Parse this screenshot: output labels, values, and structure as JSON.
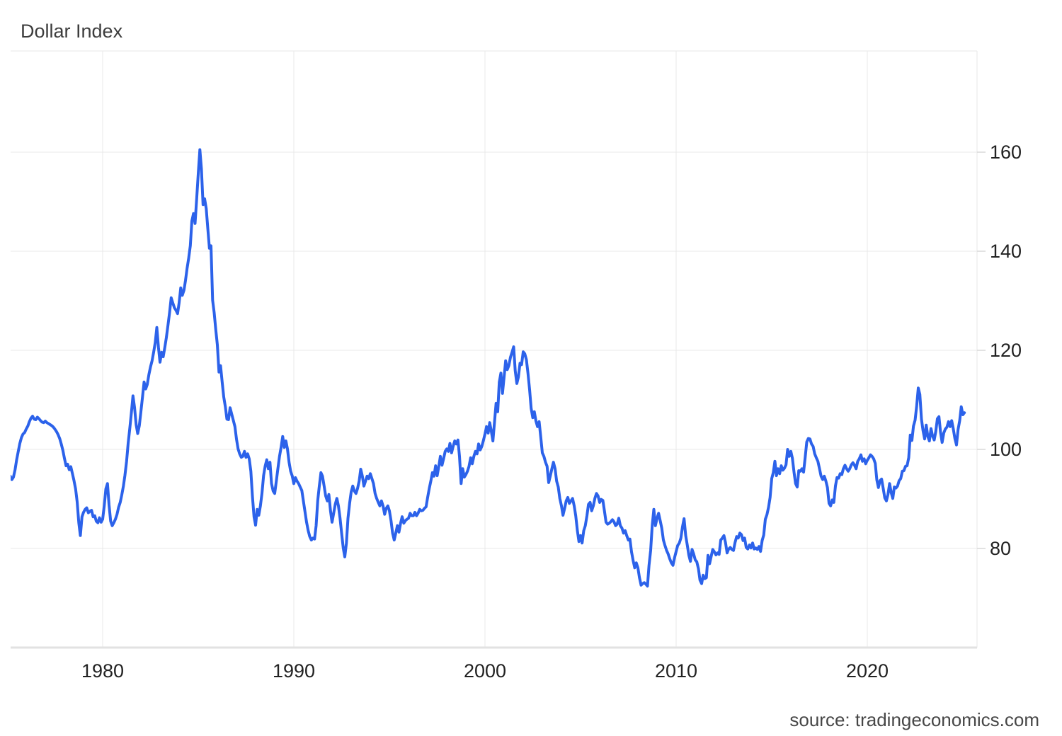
{
  "header": {
    "title": "Dollar Index"
  },
  "footer": {
    "source_text": "source: tradingeconomics.com"
  },
  "colors": {
    "line": "#2c62ea",
    "grid": "#e9e9e9",
    "plot_border": "#e7e7e7",
    "x_axis_line": "#e2e2e2",
    "tick_mark": "#d9d9d9",
    "title_text": "#3d3d3d",
    "tick_text": "#222222",
    "source_text": "#474747",
    "background": "#ffffff"
  },
  "chart_data": {
    "type": "line",
    "title": "Dollar Index",
    "xlabel": "",
    "ylabel": "",
    "legend": "none",
    "grid": true,
    "y_axis_side": "right",
    "x_ticks": [
      1980,
      1990,
      2000,
      2010,
      2020
    ],
    "y_ticks": [
      80,
      100,
      120,
      140,
      160
    ],
    "xlim": [
      1975.185,
      2025.741
    ],
    "ylim": [
      60,
      180.43
    ],
    "series": [
      {
        "name": "Dollar Index",
        "color": "#2c62ea",
        "start_year_fraction": 1975.1667,
        "points_per_year": 12,
        "values": [
          94.6,
          93.9,
          94.4,
          95.9,
          97.9,
          99.6,
          101.2,
          102.4,
          103.1,
          103.4,
          104.1,
          104.7,
          105.6,
          106.3,
          106.7,
          106.1,
          106.0,
          106.5,
          106.2,
          105.8,
          105.5,
          105.4,
          105.7,
          105.4,
          105.2,
          105.0,
          104.8,
          104.5,
          104.1,
          103.6,
          103.0,
          102.2,
          101.1,
          99.8,
          98.2,
          96.7,
          97.0,
          95.9,
          96.5,
          95.1,
          93.7,
          92.0,
          89.4,
          85.2,
          82.6,
          86.4,
          87.3,
          87.9,
          88.2,
          87.2,
          87.5,
          87.7,
          86.4,
          86.6,
          85.5,
          85.2,
          86.2,
          85.3,
          85.9,
          88.7,
          92.0,
          93.1,
          88.8,
          85.5,
          84.6,
          85.2,
          85.9,
          86.9,
          88.3,
          89.3,
          90.8,
          92.6,
          94.8,
          97.6,
          101.2,
          104.2,
          107.3,
          110.8,
          108.5,
          105.0,
          103.2,
          104.8,
          107.6,
          110.6,
          113.6,
          112.2,
          113.1,
          115.1,
          116.6,
          117.9,
          119.6,
          121.6,
          124.6,
          120.6,
          117.6,
          119.6,
          118.7,
          120.6,
          122.6,
          125.1,
          127.6,
          130.6,
          129.6,
          128.6,
          128.1,
          127.4,
          129.6,
          132.6,
          131.1,
          132.1,
          134.1,
          136.6,
          138.6,
          141.1,
          146.1,
          147.6,
          145.6,
          150.6,
          155.6,
          160.5,
          156.6,
          149.4,
          150.6,
          148.6,
          144.6,
          140.6,
          141.1,
          130.1,
          127.6,
          124.1,
          121.1,
          115.6,
          116.9,
          113.6,
          110.6,
          108.6,
          106.1,
          106.0,
          108.4,
          107.1,
          105.9,
          104.6,
          102.1,
          100.1,
          99.1,
          98.4,
          98.6,
          99.6,
          98.4,
          99.1,
          98.1,
          95.6,
          90.6,
          86.4,
          84.7,
          87.9,
          86.7,
          88.6,
          91.1,
          94.7,
          96.6,
          97.9,
          96.1,
          97.4,
          93.1,
          91.6,
          91.1,
          93.6,
          96.1,
          98.6,
          100.4,
          102.6,
          100.4,
          101.7,
          100.1,
          97.4,
          95.6,
          94.6,
          93.1,
          94.3,
          93.6,
          93.1,
          92.4,
          91.7,
          89.6,
          87.4,
          85.3,
          83.6,
          82.4,
          81.7,
          82.1,
          81.9,
          84.6,
          89.7,
          92.6,
          95.3,
          94.6,
          92.6,
          90.6,
          89.6,
          90.9,
          87.6,
          85.3,
          87.1,
          88.9,
          90.1,
          88.6,
          86.1,
          83.1,
          80.1,
          78.3,
          81.1,
          86.1,
          89.1,
          91.4,
          92.6,
          91.6,
          91.1,
          92.1,
          93.6,
          96.0,
          94.6,
          92.6,
          93.6,
          94.6,
          94.1,
          95.1,
          94.1,
          93.1,
          91.1,
          90.1,
          89.3,
          88.6,
          89.6,
          88.6,
          86.9,
          88.1,
          88.6,
          87.6,
          85.6,
          83.1,
          81.7,
          83.1,
          84.6,
          83.3,
          85.1,
          86.4,
          85.1,
          85.6,
          85.9,
          86.1,
          87.1,
          86.6,
          86.6,
          87.3,
          86.6,
          87.1,
          87.9,
          87.6,
          87.7,
          88.1,
          88.4,
          90.3,
          92.1,
          93.6,
          95.3,
          94.6,
          96.7,
          94.7,
          96.6,
          98.6,
          96.8,
          98.1,
          99.6,
          100.1,
          99.6,
          101.2,
          99.3,
          100.6,
          101.7,
          101.1,
          101.9,
          98.6,
          93.1,
          96.1,
          94.4,
          94.9,
          95.6,
          96.6,
          98.3,
          97.1,
          98.6,
          99.6,
          99.1,
          101.1,
          99.9,
          100.6,
          101.8,
          103.1,
          104.6,
          103.3,
          105.4,
          103.6,
          101.7,
          105.6,
          109.3,
          107.6,
          113.6,
          115.4,
          111.3,
          114.6,
          117.9,
          116.1,
          116.9,
          118.6,
          119.6,
          120.7,
          115.9,
          113.3,
          114.6,
          117.4,
          117.1,
          119.7,
          119.3,
          118.1,
          115.4,
          112.1,
          108.3,
          106.4,
          107.6,
          105.7,
          104.6,
          105.6,
          102.6,
          99.3,
          98.6,
          97.4,
          96.6,
          93.3,
          94.6,
          96.1,
          97.4,
          96.1,
          93.6,
          92.4,
          90.1,
          88.6,
          86.7,
          88.1,
          89.6,
          90.3,
          89.1,
          89.6,
          90.1,
          88.6,
          86.6,
          83.6,
          81.4,
          82.6,
          81.1,
          83.6,
          84.6,
          86.6,
          88.9,
          89.3,
          87.6,
          88.6,
          90.1,
          91.1,
          90.6,
          89.3,
          89.9,
          89.7,
          87.6,
          85.3,
          84.9,
          85.1,
          85.4,
          85.8,
          85.4,
          84.6,
          84.9,
          86.1,
          84.6,
          84.1,
          83.1,
          83.6,
          82.6,
          81.7,
          81.9,
          79.3,
          77.6,
          76.1,
          77.1,
          76.1,
          74.1,
          72.6,
          72.9,
          73.1,
          72.8,
          72.4,
          76.6,
          79.6,
          84.6,
          87.9,
          84.6,
          86.1,
          87.1,
          85.6,
          84.1,
          81.7,
          80.6,
          79.6,
          78.9,
          77.9,
          77.1,
          76.6,
          78.1,
          79.4,
          80.6,
          81.1,
          82.1,
          84.4,
          86.0,
          82.6,
          80.7,
          78.6,
          77.4,
          79.8,
          78.9,
          77.7,
          77.3,
          75.9,
          73.6,
          72.9,
          74.6,
          73.9,
          74.1,
          78.6,
          76.9,
          78.4,
          79.8,
          79.3,
          78.7,
          79.1,
          78.8,
          81.7,
          82.1,
          82.6,
          81.2,
          79.1,
          79.9,
          80.2,
          79.8,
          79.6,
          81.2,
          82.4,
          82.1,
          83.1,
          82.8,
          81.6,
          82.1,
          80.2,
          79.9,
          80.7,
          80.1,
          81.1,
          79.9,
          80.1,
          79.8,
          80.4,
          79.4,
          81.6,
          82.7,
          85.9,
          86.8,
          88.3,
          90.3,
          94.1,
          95.3,
          97.6,
          94.7,
          96.1,
          95.1,
          96.7,
          95.8,
          96.2,
          96.9,
          100.0,
          98.6,
          99.6,
          98.2,
          95.4,
          93.1,
          92.4,
          95.7,
          95.6,
          96.1,
          95.4,
          98.3,
          101.5,
          102.2,
          102.1,
          101.1,
          100.6,
          99.1,
          98.3,
          97.6,
          96.1,
          94.6,
          93.9,
          94.6,
          93.6,
          92.3,
          89.1,
          88.6,
          89.8,
          89.3,
          92.6,
          94.3,
          94.2,
          95.1,
          94.9,
          96.1,
          96.8,
          96.1,
          95.6,
          96.1,
          96.9,
          97.3,
          96.8,
          96.1,
          97.6,
          98.1,
          98.9,
          97.6,
          98.1,
          97.1,
          97.8,
          98.3,
          98.9,
          98.6,
          98.1,
          97.2,
          93.8,
          92.3,
          93.7,
          94.0,
          92.1,
          90.2,
          89.6,
          90.9,
          93.1,
          91.3,
          90.1,
          92.4,
          92.2,
          92.6,
          93.7,
          94.1,
          95.6,
          95.7,
          96.6,
          96.7,
          98.3,
          102.9,
          101.8,
          104.7,
          105.9,
          108.7,
          112.4,
          111.1,
          106.1,
          103.8,
          102.1,
          104.9,
          102.6,
          101.7,
          104.2,
          102.7,
          101.9,
          103.6,
          106.2,
          106.6,
          103.4,
          101.4,
          103.3,
          104.1,
          104.5,
          105.6,
          104.6,
          105.8,
          104.1,
          102.2,
          100.9,
          104.0,
          105.8,
          108.6,
          107.0,
          107.4
        ]
      }
    ]
  }
}
